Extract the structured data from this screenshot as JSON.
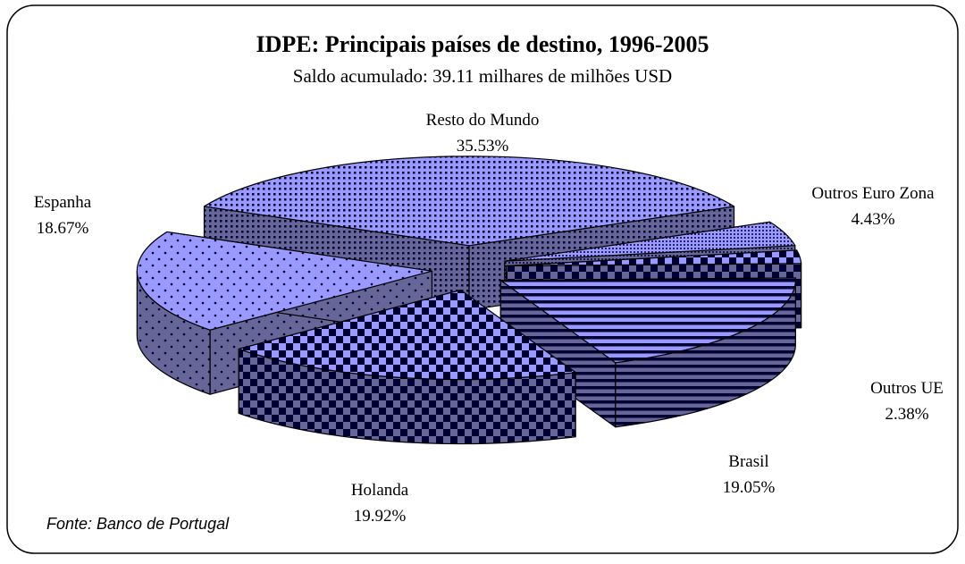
{
  "chart_data": {
    "type": "pie3d",
    "title": "IDPE: Principais países de destino, 1996-2005",
    "subtitle": "Saldo acumulado: 39.11 milhares de milhões USD",
    "source": "Fonte: Banco de Portugal",
    "categories": [
      "Resto do Mundo",
      "Outros Euro Zona",
      "Outros UE",
      "Brasil",
      "Holanda",
      "Espanha"
    ],
    "values": [
      35.53,
      4.43,
      2.38,
      19.05,
      19.92,
      18.67
    ],
    "value_labels": [
      "35.53%",
      "4.43%",
      "2.38%",
      "19.05%",
      "19.92%",
      "18.67%"
    ],
    "color": "#9999ff"
  }
}
